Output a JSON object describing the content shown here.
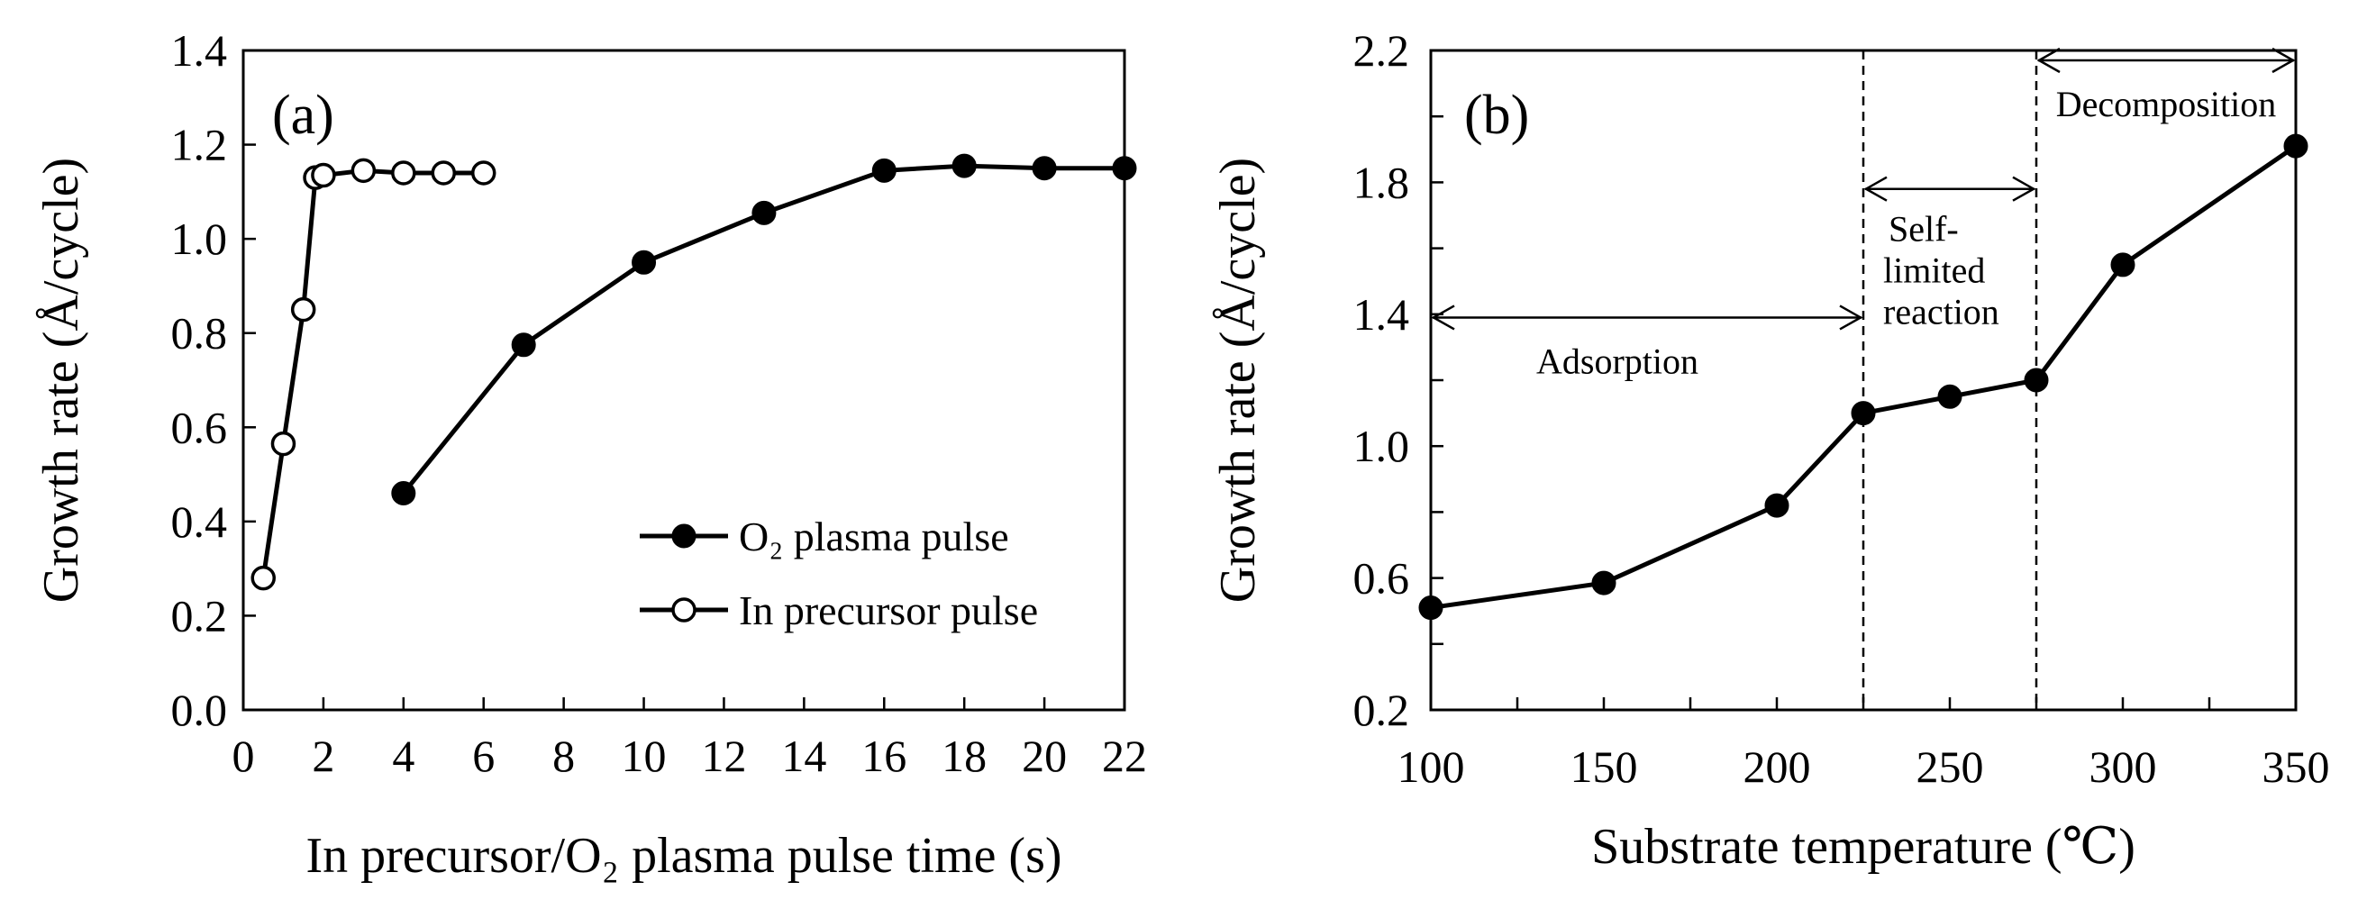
{
  "chart_data": [
    {
      "type": "line",
      "panel_label": "(a)",
      "xlabel": "In precursor/O₂ plasma pulse time (s)",
      "ylabel": "Growth rate (Å/cycle)",
      "xlim": [
        0,
        22
      ],
      "ylim": [
        0.0,
        1.4
      ],
      "xticks": [
        0,
        2,
        4,
        6,
        8,
        10,
        12,
        14,
        16,
        18,
        20,
        22
      ],
      "yticks": [
        "0.0",
        "0.2",
        "0.4",
        "0.6",
        "0.8",
        "1.0",
        "1.2",
        "1.4"
      ],
      "legend_position": "bottom-right",
      "series": [
        {
          "name": "O₂ plasma pulse",
          "marker": "filled-circle",
          "x": [
            4,
            7,
            10,
            13,
            16,
            18,
            20,
            22
          ],
          "y": [
            0.46,
            0.775,
            0.95,
            1.055,
            1.145,
            1.155,
            1.15,
            1.15
          ]
        },
        {
          "name": "In precursor pulse",
          "marker": "open-circle",
          "x": [
            0.5,
            1,
            1.5,
            1.8,
            2,
            3,
            4,
            5,
            6
          ],
          "y": [
            0.28,
            0.565,
            0.85,
            1.13,
            1.135,
            1.145,
            1.14,
            1.14,
            1.14
          ]
        }
      ]
    },
    {
      "type": "line",
      "panel_label": "(b)",
      "xlabel": "Substrate temperature (℃)",
      "ylabel": "Growth rate (Å/cycle)",
      "xlim": [
        100,
        350
      ],
      "ylim": [
        0.2,
        2.2
      ],
      "xticks": [
        100,
        150,
        200,
        250,
        300,
        350
      ],
      "yticks": [
        "0.2",
        "0.6",
        "1.0",
        "1.4",
        "1.8",
        "2.2"
      ],
      "series": [
        {
          "name": "Growth rate",
          "marker": "filled-circle",
          "x": [
            100,
            150,
            200,
            225,
            250,
            275,
            300,
            350
          ],
          "y": [
            0.51,
            0.585,
            0.82,
            1.1,
            1.15,
            1.2,
            1.55,
            1.91
          ]
        }
      ],
      "vlines": [
        225,
        275
      ],
      "regions": [
        {
          "label": "Adsorption",
          "from": 100,
          "to": 225,
          "arrow_y": 1.39
        },
        {
          "label_lines": [
            "Self-",
            "limited",
            "reaction"
          ],
          "from": 225,
          "to": 275,
          "arrow_y": 1.78
        },
        {
          "label": "Decomposition",
          "from": 275,
          "to": 350,
          "arrow_y": 2.17
        }
      ]
    }
  ]
}
